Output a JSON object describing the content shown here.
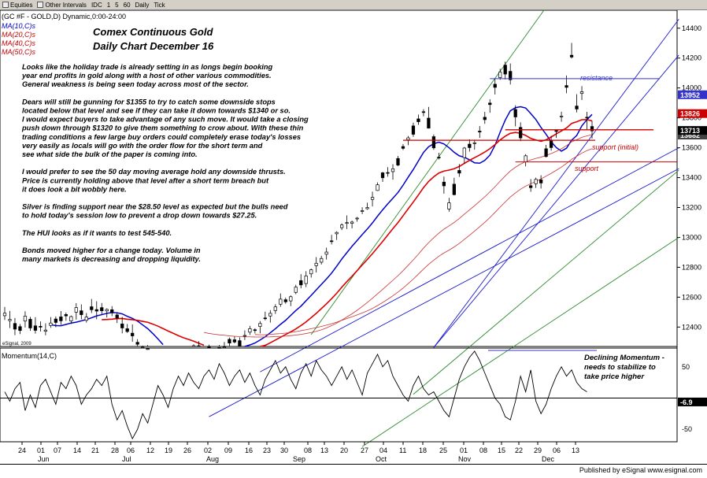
{
  "toolbar": {
    "items": [
      "Equities",
      "Other Intervals",
      "IDC",
      "1",
      "5",
      "60",
      "Daily",
      "Tick"
    ]
  },
  "chart_data": {
    "type": "candlestick",
    "header": "(GC #F - GOLD,D) Dynamic,0:00-24:00",
    "title": "Comex Continuous Gold",
    "subtitle": "Daily Chart    December 16",
    "ma_legend": [
      {
        "label": "MA(10,C)s",
        "color": "#0000cc"
      },
      {
        "label": "MA(20,C)s",
        "color": "#cc0000"
      },
      {
        "label": "MA(40,C)s",
        "color": "#cc0000"
      },
      {
        "label": "MA(50,C)s",
        "color": "#cc0000"
      }
    ],
    "commentary": [
      "Looks like the holiday trade is already setting in as longs begin booking",
      "year end profits in gold along with a host of other various commodities.",
      "General weakness is being seen today across most of the sector.",
      "",
      "Dears will still be gunning for $1355 to try to catch some downside stops",
      "located below that level and see if they can take it down towards $1340 or so.",
      "I would expect buyers to take advantage of any such move. It would take a closing",
      "push down through $1320 to give them something to crow about. With these thin",
      "trading conditions a few large buy orders could completely erase today's losses",
      "very easily as locals will go with the order flow for the short term and",
      "see what side the bulk of the paper is coming into.",
      "",
      "I would prefer to see the 50 day moving average hold any downside thrusts.",
      "Price is currently holding above that level after a short term breach but",
      "it does look a bit wobbly here.",
      "",
      "Silver is finding support near the $28.50 level as expected but the bulls need",
      "to hold today's session low to prevent a drop down towards $27.25.",
      "",
      "The HUI  looks as if it wants to test 545-540.",
      "",
      "Bonds moved higher for a change today. Volume in",
      "many markets is decreasing and dropping liquidity."
    ],
    "annotations": {
      "resistance": "resistance",
      "support_initial": "support (initial)",
      "support": "support",
      "momentum_note": [
        "Declining Momentum -",
        "needs to stabilize to",
        "take price higher"
      ]
    },
    "copyright": "eSignal, 2009",
    "price_axis": {
      "ticks": [
        12400,
        12600,
        12800,
        13000,
        13200,
        13400,
        13600,
        13800,
        14000,
        14200,
        14400
      ],
      "ylim": [
        12270,
        14520
      ],
      "labels": {
        "last_close": "13713",
        "l1": "13952",
        "l2": "13826",
        "l3": "13682"
      }
    },
    "momentum": {
      "label": "Momentum(14,C)",
      "ticks": [
        50,
        0,
        -50
      ],
      "ylim": [
        -70,
        80
      ],
      "readout": "-6.9",
      "values": [
        10,
        -5,
        15,
        25,
        -20,
        5,
        -15,
        20,
        30,
        10,
        -10,
        25,
        15,
        35,
        20,
        -10,
        5,
        15,
        30,
        20,
        35,
        -10,
        -35,
        -20,
        -45,
        -65,
        -50,
        -25,
        -40,
        -10,
        20,
        5,
        -15,
        15,
        35,
        20,
        40,
        25,
        15,
        35,
        45,
        30,
        55,
        40,
        20,
        35,
        45,
        25,
        40,
        20,
        5,
        30,
        45,
        60,
        40,
        50,
        30,
        15,
        40,
        55,
        35,
        60,
        45,
        35,
        20,
        35,
        50,
        30,
        45,
        25,
        5,
        40,
        55,
        70,
        50,
        60,
        35,
        20,
        5,
        -5,
        20,
        35,
        15,
        5,
        10,
        -5,
        -20,
        -30,
        0,
        30,
        50,
        65,
        75,
        60,
        40,
        20,
        0,
        -10,
        -30,
        -35,
        -5,
        35,
        10,
        45,
        -5,
        -25,
        -10,
        15,
        35,
        50,
        35,
        45,
        25,
        15,
        10
      ]
    },
    "dates": [
      "24",
      "01",
      "07",
      "14",
      "21",
      "28",
      "06",
      "12",
      "19",
      "26",
      "02",
      "09",
      "16",
      "23",
      "30",
      "08",
      "13",
      "20",
      "27",
      "04",
      "11",
      "18",
      "25",
      "01",
      "08",
      "15",
      "22",
      "29",
      "06",
      "13"
    ],
    "months": [
      "Jun",
      "Jul",
      "Aug",
      "Sep",
      "Oct",
      "Nov",
      "Dec"
    ],
    "candles": [
      [
        12476,
        12535,
        12447,
        12493
      ],
      [
        12443,
        12508,
        12393,
        12451
      ],
      [
        12424,
        12461,
        12346,
        12386
      ],
      [
        12403,
        12420,
        12353,
        12377
      ],
      [
        12440,
        12506,
        12397,
        12473
      ],
      [
        12452,
        12468,
        12375,
        12394
      ],
      [
        12408,
        12466,
        12356,
        12378
      ],
      [
        12405,
        12438,
        12370,
        12400
      ],
      [
        12372,
        12425,
        12345,
        12380
      ],
      [
        12411,
        12467,
        12395,
        12427
      ],
      [
        12454,
        12471,
        12399,
        12431
      ],
      [
        12468,
        12507,
        12416,
        12442
      ],
      [
        12484,
        12497,
        12442,
        12475
      ],
      [
        12441,
        12477,
        12421,
        12470
      ],
      [
        12500,
        12560,
        12450,
        12530
      ],
      [
        12509,
        12552,
        12452,
        12483
      ],
      [
        12445,
        12494,
        12430,
        12467
      ],
      [
        12536,
        12588,
        12494,
        12516
      ],
      [
        12517,
        12573,
        12452,
        12507
      ],
      [
        12530,
        12561,
        12485,
        12509
      ],
      [
        12508,
        12525,
        12464,
        12518
      ],
      [
        12516,
        12540,
        12473,
        12496
      ],
      [
        12481,
        12498,
        12427,
        12460
      ],
      [
        12421,
        12468,
        12358,
        12394
      ],
      [
        12389,
        12421,
        12361,
        12370
      ],
      [
        12359,
        12418,
        12301,
        12341
      ],
      [
        12298,
        12319,
        12265,
        12285
      ],
      [
        12263,
        12276,
        12247,
        12265
      ],
      [
        12225,
        12280,
        12203,
        12255
      ],
      [
        12187,
        12197,
        12133,
        12183
      ],
      [
        12201,
        12206,
        12139,
        12156
      ],
      [
        12146,
        12159,
        12087,
        12119
      ],
      [
        12133,
        12207,
        12097,
        12148
      ],
      [
        12152,
        12199,
        12135,
        12164
      ],
      [
        12220,
        12240,
        12195,
        12216
      ],
      [
        12183,
        12233,
        12159,
        12207
      ],
      [
        12212,
        12259,
        12206,
        12239
      ],
      [
        12232,
        12285,
        12215,
        12275
      ],
      [
        12275,
        12305,
        12213,
        12233
      ],
      [
        12255,
        12267,
        12219,
        12253
      ],
      [
        12269,
        12282,
        12204,
        12220
      ],
      [
        12205,
        12255,
        12193,
        12245
      ],
      [
        12263,
        12280,
        12201,
        12221
      ],
      [
        12252,
        12300,
        12233,
        12266
      ],
      [
        12318,
        12329,
        12273,
        12293
      ],
      [
        12315,
        12337,
        12291,
        12300
      ],
      [
        12309,
        12331,
        12261,
        12273
      ],
      [
        12341,
        12378,
        12313,
        12344
      ],
      [
        12366,
        12408,
        12348,
        12389
      ],
      [
        12382,
        12392,
        12357,
        12380
      ],
      [
        12404,
        12440,
        12358,
        12424
      ],
      [
        12461,
        12503,
        12445,
        12459
      ],
      [
        12474,
        12513,
        12430,
        12492
      ],
      [
        12511,
        12553,
        12488,
        12535
      ],
      [
        12553,
        12625,
        12536,
        12587
      ],
      [
        12583,
        12597,
        12556,
        12569
      ],
      [
        12575,
        12612,
        12540,
        12603
      ],
      [
        12632,
        12683,
        12620,
        12667
      ],
      [
        12711,
        12754,
        12659,
        12682
      ],
      [
        12691,
        12774,
        12667,
        12742
      ],
      [
        12756,
        12791,
        12731,
        12783
      ],
      [
        12811,
        12868,
        12765,
        12827
      ],
      [
        12834,
        12877,
        12819,
        12859
      ],
      [
        12887,
        12931,
        12852,
        12902
      ],
      [
        12977,
        13017,
        12953,
        12975
      ],
      [
        13024,
        13041,
        12983,
        13033
      ],
      [
        13065,
        13094,
        13049,
        13083
      ],
      [
        13097,
        13147,
        13056,
        13099
      ],
      [
        13094,
        13112,
        13060,
        13103
      ],
      [
        13129,
        13137,
        13105,
        13129
      ],
      [
        13173,
        13202,
        13156,
        13179
      ],
      [
        13192,
        13232,
        13185,
        13200
      ],
      [
        13254,
        13306,
        13207,
        13268
      ],
      [
        13314,
        13368,
        13311,
        13352
      ],
      [
        13432,
        13438,
        13371,
        13399
      ],
      [
        13434,
        13470,
        13406,
        13430
      ],
      [
        13440,
        13490,
        13386,
        13459
      ],
      [
        13528,
        13545,
        13476,
        13484
      ],
      [
        13608,
        13625,
        13585,
        13596
      ],
      [
        13653,
        13679,
        13617,
        13666
      ],
      [
        13746,
        13768,
        13673,
        13690
      ],
      [
        13793,
        13822,
        13753,
        13774
      ],
      [
        13841,
        13858,
        13810,
        13836
      ],
      [
        13798,
        13873,
        13729,
        13731
      ],
      [
        13674,
        13689,
        13586,
        13599
      ],
      [
        13537,
        13566,
        13521,
        13535
      ],
      [
        13370,
        13407,
        13293,
        13345
      ],
      [
        13190,
        13265,
        13172,
        13231
      ],
      [
        13356,
        13399,
        13281,
        13286
      ],
      [
        13448,
        13491,
        13405,
        13430
      ],
      [
        13534,
        13605,
        13493,
        13598
      ],
      [
        13624,
        13656,
        13574,
        13601
      ],
      [
        13632,
        13654,
        13587,
        13633
      ],
      [
        13711,
        13745,
        13666,
        13705
      ],
      [
        13804,
        13840,
        13760,
        13788
      ],
      [
        13899,
        13924,
        13834,
        13889
      ],
      [
        14025,
        14061,
        13956,
        14004
      ],
      [
        14069,
        14128,
        14055,
        14106
      ],
      [
        14153,
        14176,
        14057,
        14093
      ],
      [
        14111,
        14164,
        14023,
        14055
      ],
      [
        13856,
        13884,
        13743,
        13806
      ],
      [
        13736,
        13770,
        13644,
        13666
      ],
      [
        13505,
        13557,
        13475,
        13546
      ],
      [
        13346,
        13390,
        13305,
        13333
      ],
      [
        13359,
        13400,
        13331,
        13388
      ],
      [
        13385,
        13416,
        13327,
        13364
      ],
      [
        13593,
        13619,
        13535,
        13541
      ],
      [
        13648,
        13680,
        13580,
        13601
      ],
      [
        13714,
        13722,
        13666,
        13713
      ],
      [
        13812,
        13841,
        13774,
        13812
      ],
      [
        14016,
        14083,
        13965,
        14004
      ],
      [
        14219,
        14301,
        14197,
        14207
      ],
      [
        13879,
        13958,
        13836,
        13859
      ],
      [
        13963,
        14012,
        13919,
        13975
      ],
      [
        13804,
        13840,
        13719,
        13802
      ],
      [
        13742,
        13780,
        13662,
        13713
      ]
    ]
  },
  "footer": {
    "published_by": "Published by eSignal    www.esignal.com"
  }
}
